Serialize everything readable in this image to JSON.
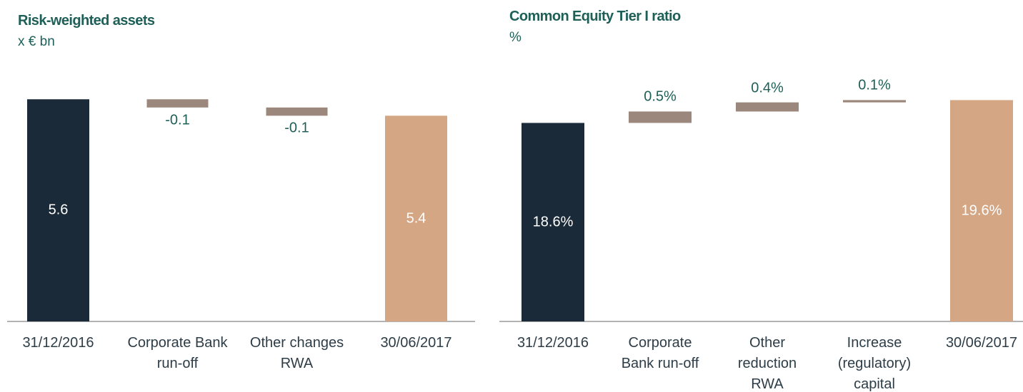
{
  "chart_data": [
    {
      "type": "waterfall",
      "title": "Risk-weighted assets",
      "subtitle": "x € bn",
      "categories": [
        "31/12/2016",
        "Corporate Bank run-off",
        "Other changes RWA",
        "30/06/2017"
      ],
      "values": [
        5.6,
        -0.1,
        -0.1,
        5.4
      ],
      "colors": [
        "#1b2a38",
        "#9b877b",
        "#9b877b",
        "#d4a684"
      ],
      "ylim": [
        2.9,
        6.2
      ]
    },
    {
      "type": "waterfall",
      "title": "Common Equity Tier I ratio",
      "subtitle": "%",
      "categories": [
        "31/12/2016",
        "Corporate Bank run-off",
        "Other reduction RWA",
        "Increase (regulatory) capital",
        "30/06/2017"
      ],
      "values": [
        18.6,
        0.5,
        0.4,
        0.1,
        19.6
      ],
      "value_labels": [
        "18.6%",
        "0.5%",
        "0.4%",
        "0.1%",
        "19.6%"
      ],
      "colors": [
        "#1b2a38",
        "#9b877b",
        "#9b877b",
        "#9b877b",
        "#d4a684"
      ],
      "ylim": [
        9.9,
        21.8
      ]
    }
  ]
}
